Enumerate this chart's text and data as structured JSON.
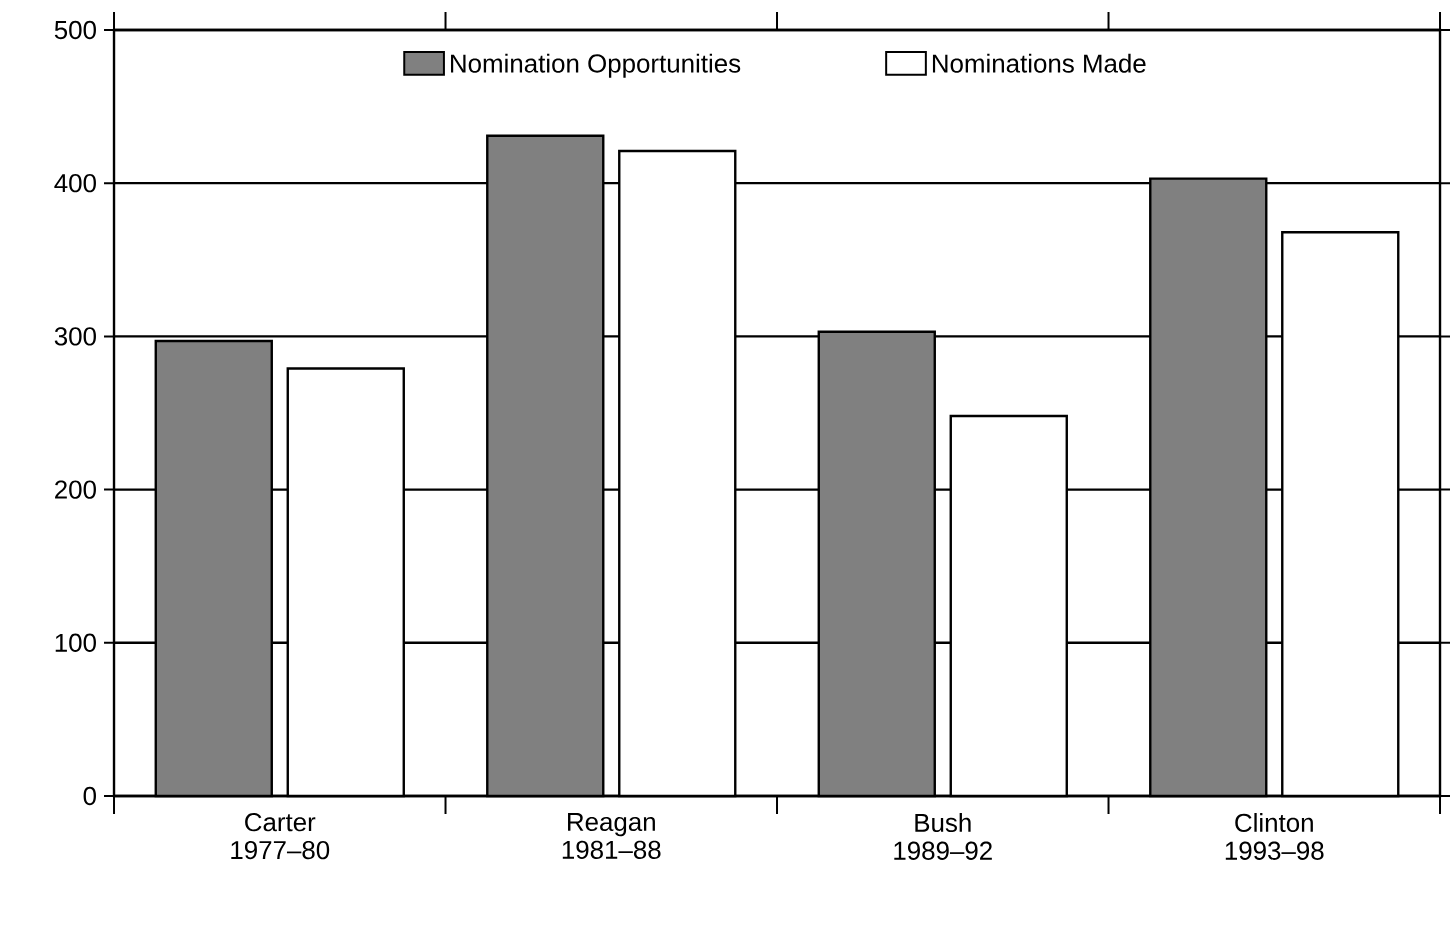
{
  "chart_data": {
    "type": "bar",
    "categories": [
      "Carter 1977–80",
      "Reagan 1981–88",
      "Bush 1989–92",
      "Clinton 1993–98"
    ],
    "series": [
      {
        "name": "Nomination Opportunities",
        "color": "#808080",
        "values": [
          297,
          431,
          303,
          403
        ]
      },
      {
        "name": "Nominations Made",
        "color": "#ffffff",
        "values": [
          279,
          421,
          248,
          368
        ]
      }
    ],
    "ylim": [
      0,
      500
    ],
    "yticks": [
      0,
      100,
      200,
      300,
      400,
      500
    ],
    "grid": "y",
    "legend": "top"
  }
}
